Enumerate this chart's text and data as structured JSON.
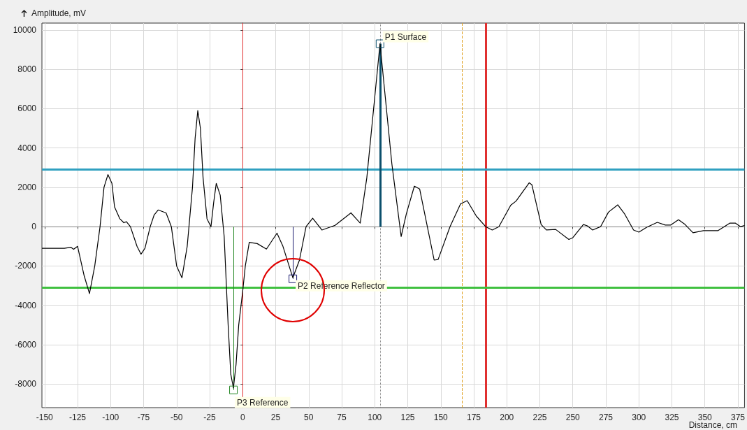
{
  "chart_data": {
    "type": "line",
    "xlabel": "Distance, cm",
    "ylabel": "Amplitude, mV",
    "x": [
      -152,
      -135,
      -130,
      -128,
      -125,
      -120,
      -116,
      -112,
      -108,
      -105,
      -102,
      -99,
      -97,
      -93,
      -90,
      -88,
      -85,
      -80,
      -77,
      -74,
      -70,
      -67,
      -64,
      -58,
      -54,
      -50,
      -46,
      -42,
      -38,
      -36,
      -34,
      -32,
      -30,
      -27,
      -24,
      -22,
      -20,
      -17,
      -14,
      -11,
      -9,
      -7,
      -5,
      -3,
      0,
      2,
      5,
      11,
      18,
      26,
      30.5,
      38,
      43,
      48,
      53,
      60,
      70,
      82,
      89,
      94,
      104,
      113,
      120,
      124,
      130,
      134,
      145,
      148,
      157,
      165,
      170,
      177,
      184,
      189,
      194,
      203,
      207,
      217,
      219,
      226,
      230,
      237,
      247,
      250,
      258,
      261,
      265,
      271,
      277,
      284,
      289,
      296,
      300,
      306,
      314,
      320,
      324,
      330,
      335,
      341,
      349,
      360,
      369,
      373,
      377,
      380
    ],
    "values": [
      -1100,
      -1100,
      -1050,
      -1150,
      -1000,
      -2500,
      -3400,
      -2000,
      0,
      2000,
      2650,
      2200,
      1000,
      400,
      200,
      250,
      0,
      -1000,
      -1400,
      -1100,
      0,
      600,
      850,
      700,
      0,
      -2000,
      -2600,
      -1000,
      2000,
      4500,
      5900,
      5000,
      2500,
      400,
      0,
      1200,
      2200,
      1600,
      -500,
      -5000,
      -7500,
      -8200,
      -7000,
      -5000,
      -3300,
      -2000,
      -800,
      -860,
      -1140,
      -330,
      -1000,
      -2600,
      -1700,
      0,
      430,
      -170,
      70,
      700,
      180,
      2480,
      9300,
      3180,
      -500,
      670,
      2060,
      1920,
      -1700,
      -1670,
      0,
      1160,
      1320,
      530,
      0,
      -170,
      0,
      1090,
      1300,
      2230,
      2130,
      110,
      -170,
      -140,
      -650,
      -560,
      110,
      40,
      -170,
      0,
      740,
      1110,
      670,
      -170,
      -280,
      -30,
      220,
      80,
      80,
      350,
      110,
      -310,
      -200,
      -200,
      180,
      180,
      0,
      60
    ],
    "color": "#000000",
    "marker": "none",
    "line_style": "solid",
    "grid": true,
    "xlim": [
      -152,
      380
    ],
    "xticks": [
      -150,
      -125,
      -100,
      -75,
      -50,
      -25,
      0,
      25,
      50,
      75,
      100,
      125,
      150,
      175,
      200,
      225,
      250,
      275,
      300,
      325,
      350,
      375
    ],
    "ylim": [
      -9200,
      10350
    ],
    "yticks": [
      -8000,
      -6000,
      -4000,
      -2000,
      0,
      2000,
      4000,
      6000,
      8000,
      10000
    ],
    "ref_lines": [
      {
        "axis": "y",
        "value": 0,
        "label": null,
        "color": "#808080",
        "line_style": "solid"
      },
      {
        "axis": "x",
        "value": 0,
        "label": null,
        "color": "#e03030",
        "line_style": "solid"
      },
      {
        "axis": "x",
        "value": 184,
        "label": null,
        "color": "#e03030",
        "line_style": "solid"
      },
      {
        "axis": "x",
        "value": 166,
        "label": null,
        "color": "#e0a020",
        "line_style": "dashed"
      },
      {
        "axis": "x",
        "value": 104,
        "label": null,
        "color": "#888888",
        "line_style": "dotted"
      },
      {
        "axis": "y",
        "value": 2900,
        "label": null,
        "color": "#30a0c0",
        "line_style": "solid"
      },
      {
        "axis": "y",
        "value": -3100,
        "label": null,
        "color": "#40c040",
        "line_style": "solid"
      }
    ],
    "annotations": [
      {
        "text": "P1 Surface",
        "x": 104,
        "y": 9300
      },
      {
        "text": "P2 Reference Reflector",
        "x": 38,
        "y": -2650
      },
      {
        "text": "P3 Reference",
        "x": -7,
        "y": -8300
      }
    ]
  }
}
